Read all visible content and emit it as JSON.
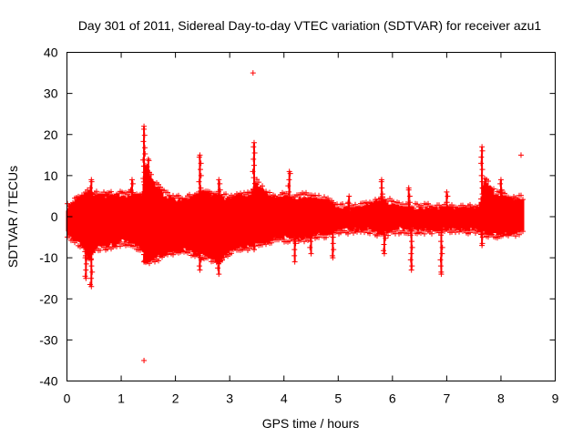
{
  "chart_data": {
    "type": "scatter",
    "title": "Day 301 of 2011, Sidereal Day-to-day VTEC variation (SDTVAR) for receiver azu1",
    "xlabel": "GPS time / hours",
    "ylabel": "SDTVAR / TECUs",
    "xlim": [
      0,
      9
    ],
    "ylim": [
      -40,
      40
    ],
    "x_ticks": [
      0,
      1,
      2,
      3,
      4,
      5,
      6,
      7,
      8,
      9
    ],
    "y_ticks": [
      -40,
      -30,
      -20,
      -10,
      0,
      10,
      20,
      30,
      40
    ],
    "x_tick_labels": [
      "0",
      "1",
      "2",
      "3",
      "4",
      "5",
      "6",
      "7",
      "8",
      "9"
    ],
    "y_tick_labels": [
      "-40",
      "-30",
      "-20",
      "-10",
      "0",
      "10",
      "20",
      "30",
      "40"
    ],
    "marker": "+",
    "color": "#ff0000",
    "grid": false,
    "data_x_range": [
      0.0,
      8.4
    ],
    "envelope": {
      "x": [
        0.0,
        0.1,
        0.2,
        0.3,
        0.4,
        0.5,
        0.6,
        0.8,
        1.0,
        1.2,
        1.4,
        1.45,
        1.6,
        1.8,
        2.0,
        2.2,
        2.4,
        2.5,
        2.7,
        2.8,
        3.0,
        3.2,
        3.4,
        3.5,
        3.7,
        3.9,
        4.0,
        4.2,
        4.4,
        4.6,
        4.8,
        5.0,
        5.2,
        5.4,
        5.6,
        5.8,
        6.0,
        6.2,
        6.4,
        6.6,
        6.8,
        7.0,
        7.2,
        7.4,
        7.6,
        7.7,
        7.9,
        8.0,
        8.2,
        8.4
      ],
      "upper": [
        2,
        3,
        4,
        5,
        6,
        5,
        5,
        5,
        5,
        5,
        5,
        12,
        8,
        5,
        4,
        4,
        5,
        6,
        5,
        5,
        4,
        5,
        5,
        8,
        5,
        4,
        5,
        4,
        5,
        4,
        4,
        2,
        2,
        2,
        3,
        4,
        3,
        2,
        2,
        2,
        2,
        2,
        2,
        2,
        2,
        9,
        5,
        5,
        4,
        4
      ],
      "lower": [
        -4,
        -5,
        -6,
        -7,
        -10,
        -8,
        -7,
        -7,
        -6,
        -6,
        -8,
        -11,
        -10,
        -9,
        -8,
        -8,
        -9,
        -9,
        -10,
        -11,
        -8,
        -7,
        -7,
        -6,
        -6,
        -5,
        -5,
        -5,
        -5,
        -4,
        -4,
        -3,
        -3,
        -3,
        -3,
        -4,
        -3,
        -3,
        -3,
        -3,
        -3,
        -3,
        -3,
        -3,
        -3,
        -4,
        -4,
        -4,
        -4,
        -3
      ]
    },
    "spikes": [
      {
        "x": 0.35,
        "y": -15
      },
      {
        "x": 0.45,
        "y": -17
      },
      {
        "x": 0.45,
        "y": 9
      },
      {
        "x": 1.2,
        "y": 9
      },
      {
        "x": 1.3,
        "y": -7
      },
      {
        "x": 1.42,
        "y": 22
      },
      {
        "x": 1.42,
        "y": -11
      },
      {
        "x": 1.5,
        "y": 14
      },
      {
        "x": 2.45,
        "y": 15
      },
      {
        "x": 2.45,
        "y": -13
      },
      {
        "x": 2.8,
        "y": 9
      },
      {
        "x": 2.8,
        "y": -14
      },
      {
        "x": 3.45,
        "y": 18
      },
      {
        "x": 3.45,
        "y": -8
      },
      {
        "x": 4.1,
        "y": 11
      },
      {
        "x": 4.2,
        "y": -11
      },
      {
        "x": 4.5,
        "y": -9
      },
      {
        "x": 4.9,
        "y": -10
      },
      {
        "x": 5.2,
        "y": 5
      },
      {
        "x": 5.8,
        "y": 9
      },
      {
        "x": 5.85,
        "y": -9
      },
      {
        "x": 6.3,
        "y": 7
      },
      {
        "x": 6.35,
        "y": -13
      },
      {
        "x": 6.9,
        "y": -14
      },
      {
        "x": 7.0,
        "y": 6
      },
      {
        "x": 7.65,
        "y": 17
      },
      {
        "x": 7.65,
        "y": -7
      },
      {
        "x": 8.0,
        "y": 9
      }
    ],
    "outliers": [
      {
        "x": 3.43,
        "y": 35
      },
      {
        "x": 1.42,
        "y": -35
      },
      {
        "x": 8.37,
        "y": 15
      }
    ]
  }
}
